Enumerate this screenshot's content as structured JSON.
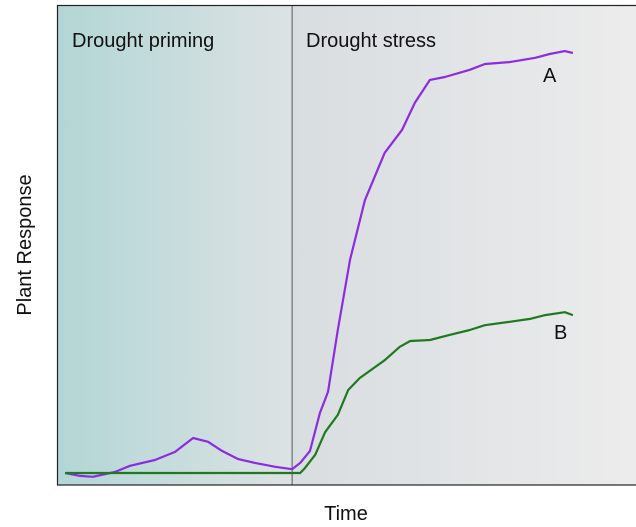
{
  "chart_data": {
    "type": "line",
    "x_label": "Time",
    "y_label": "Plant Response",
    "xlim": [
      0,
      100
    ],
    "ylim": [
      0,
      100
    ],
    "regions": [
      {
        "label": "Drought priming",
        "x_start": 0,
        "x_end": 40.6
      },
      {
        "label": "Drought stress",
        "x_start": 40.6,
        "x_end": 100
      }
    ],
    "series": [
      {
        "name": "A",
        "color": "#8b2be2",
        "x": [
          1.4,
          4.0,
          6.2,
          10.0,
          12.6,
          16.9,
          20.4,
          23.5,
          26.1,
          28.5,
          31.3,
          34.2,
          37.7,
          40.6,
          42.0,
          43.7,
          45.4,
          46.8,
          48.5,
          50.6,
          53.2,
          56.6,
          59.6,
          61.8,
          64.4,
          67.0,
          71.3,
          73.9,
          78.2,
          82.6,
          85.1,
          87.7,
          89.1
        ],
        "values": [
          2.5,
          1.9,
          1.7,
          2.7,
          4.0,
          5.2,
          6.9,
          9.8,
          9.0,
          7.1,
          5.4,
          4.6,
          3.8,
          3.3,
          4.6,
          7.1,
          15.0,
          19.4,
          32.3,
          46.9,
          59.4,
          69.2,
          74.0,
          79.6,
          84.4,
          85.0,
          86.5,
          87.7,
          88.1,
          89.0,
          89.8,
          90.4,
          90.0
        ]
      },
      {
        "name": "B",
        "color": "#1f7a1f",
        "x": [
          1.4,
          42.0,
          42.8,
          44.6,
          46.3,
          48.5,
          50.3,
          52.3,
          56.6,
          59.2,
          61.0,
          64.4,
          67.9,
          71.3,
          73.9,
          78.2,
          81.7,
          84.3,
          87.7,
          89.1
        ],
        "values": [
          2.5,
          2.5,
          3.5,
          6.3,
          11.0,
          14.6,
          19.8,
          22.3,
          26.0,
          28.8,
          30.0,
          30.2,
          31.3,
          32.3,
          33.3,
          34.0,
          34.6,
          35.4,
          36.0,
          35.4
        ]
      }
    ]
  }
}
